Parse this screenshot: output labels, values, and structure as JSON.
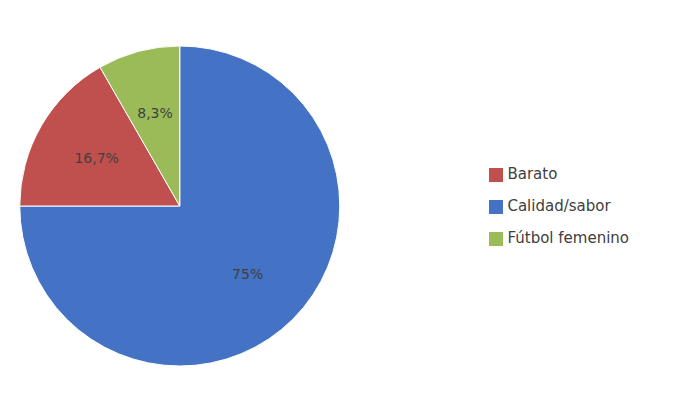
{
  "chart_data": {
    "type": "pie",
    "categories": [
      "Calidad/sabor",
      "Barato",
      "Fútbol femenino"
    ],
    "values": [
      75.0,
      16.7,
      8.3
    ],
    "value_labels": [
      "75%",
      "16,7%",
      "8,3%"
    ],
    "colors": [
      "#4472C4",
      "#C0504D",
      "#9BBB59"
    ],
    "data_labels": true,
    "legend": "right"
  }
}
